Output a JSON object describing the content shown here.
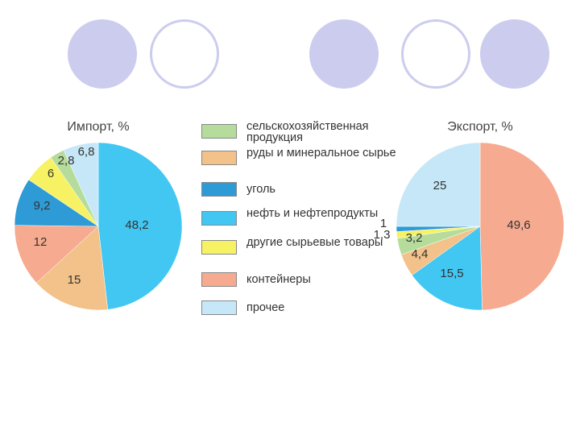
{
  "decor": {
    "circle_color": "#ccccee",
    "circle_pattern": [
      "filled",
      "ring",
      "filled",
      "ring",
      "filled"
    ]
  },
  "legend": [
    {
      "label": "сельскохозяйственная продукция",
      "color": "#b5dc9b"
    },
    {
      "label": "руды и минеральное сырье",
      "color": "#f2c28a"
    },
    {
      "label": "уголь",
      "color": "#2e9bd6"
    },
    {
      "label": "нефть и нефтепродукты",
      "color": "#42c6f2"
    },
    {
      "label": "другие сырьевые товары",
      "color": "#f7f264"
    },
    {
      "label": "контейнеры",
      "color": "#f6aa8f"
    },
    {
      "label": "прочее",
      "color": "#c6e7f7"
    }
  ],
  "chart_data": [
    {
      "type": "pie",
      "title": "Импорт, %",
      "slices": [
        {
          "category": "нефть и нефтепродукты",
          "value": 48.2,
          "label": "48,2",
          "color": "#42c6f2"
        },
        {
          "category": "руды и минеральное сырье",
          "value": 15,
          "label": "15",
          "color": "#f2c28a"
        },
        {
          "category": "контейнеры",
          "value": 12,
          "label": "12",
          "color": "#f6aa8f"
        },
        {
          "category": "уголь",
          "value": 9.2,
          "label": "9,2",
          "color": "#2e9bd6"
        },
        {
          "category": "другие сырьевые товары",
          "value": 6,
          "label": "6",
          "color": "#f7f264"
        },
        {
          "category": "сельскохозяйственная продукция",
          "value": 2.8,
          "label": "2,8",
          "color": "#b5dc9b"
        },
        {
          "category": "прочее",
          "value": 6.8,
          "label": "6,8",
          "color": "#c6e7f7"
        }
      ]
    },
    {
      "type": "pie",
      "title": "Экспорт, %",
      "slices": [
        {
          "category": "контейнеры",
          "value": 49.6,
          "label": "49,6",
          "color": "#f6aa8f"
        },
        {
          "category": "нефть и нефтепродукты",
          "value": 15.5,
          "label": "15,5",
          "color": "#42c6f2"
        },
        {
          "category": "руды и минеральное сырье",
          "value": 4.4,
          "label": "4,4",
          "color": "#f2c28a"
        },
        {
          "category": "сельскохозяйственная продукция",
          "value": 3.2,
          "label": "3,2",
          "color": "#b5dc9b"
        },
        {
          "category": "другие сырьевые товары",
          "value": 1.3,
          "label": "1,3",
          "color": "#f7f264"
        },
        {
          "category": "уголь",
          "value": 1,
          "label": "1",
          "color": "#2e9bd6"
        },
        {
          "category": "прочее",
          "value": 25,
          "label": "25",
          "color": "#c6e7f7"
        }
      ]
    }
  ]
}
